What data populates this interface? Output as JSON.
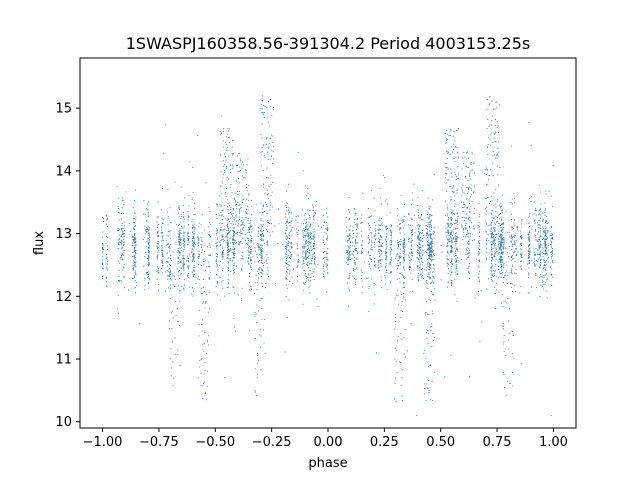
{
  "chart_data": {
    "type": "scatter",
    "title": "1SWASPJ160358.56-391304.2 Period 4003153.25s",
    "xlabel": "phase",
    "ylabel": "flux",
    "xlim": [
      -1.1,
      1.1
    ],
    "ylim": [
      9.9,
      15.8
    ],
    "xticks": [
      -1.0,
      -0.75,
      -0.5,
      -0.25,
      0.0,
      0.25,
      0.5,
      0.75,
      1.0
    ],
    "xtick_labels": [
      "−1.00",
      "−0.75",
      "−0.50",
      "−0.25",
      "0.00",
      "0.25",
      "0.50",
      "0.75",
      "1.00"
    ],
    "yticks": [
      10,
      11,
      12,
      13,
      14,
      15
    ],
    "ytick_labels": [
      "10",
      "11",
      "12",
      "13",
      "14",
      "15"
    ],
    "grid": false,
    "marker_color": "#1f77b4",
    "series": [
      {
        "phase_range": [
          -1.0,
          1.0
        ],
        "baseline_flux": 12.8,
        "typical_flux_range": [
          12.2,
          13.4
        ],
        "gap_phases": [
          [
            -0.98,
            -0.94
          ],
          [
            0.0,
            0.08
          ]
        ],
        "bright_excursions": [
          {
            "phase": -0.45,
            "max_flux": 14.7
          },
          {
            "phase": -0.38,
            "max_flux": 14.3
          },
          {
            "phase": -0.27,
            "max_flux": 15.2
          },
          {
            "phase": 0.55,
            "max_flux": 14.7
          },
          {
            "phase": 0.62,
            "max_flux": 14.3
          },
          {
            "phase": 0.73,
            "max_flux": 15.2
          }
        ],
        "faint_excursions": [
          {
            "phase": -0.68,
            "min_flux": 10.5
          },
          {
            "phase": -0.55,
            "min_flux": 10.3
          },
          {
            "phase": -0.3,
            "min_flux": 10.4
          },
          {
            "phase": 0.32,
            "min_flux": 10.3
          },
          {
            "phase": 0.45,
            "min_flux": 10.3
          },
          {
            "phase": 0.8,
            "min_flux": 10.4
          }
        ]
      }
    ]
  }
}
